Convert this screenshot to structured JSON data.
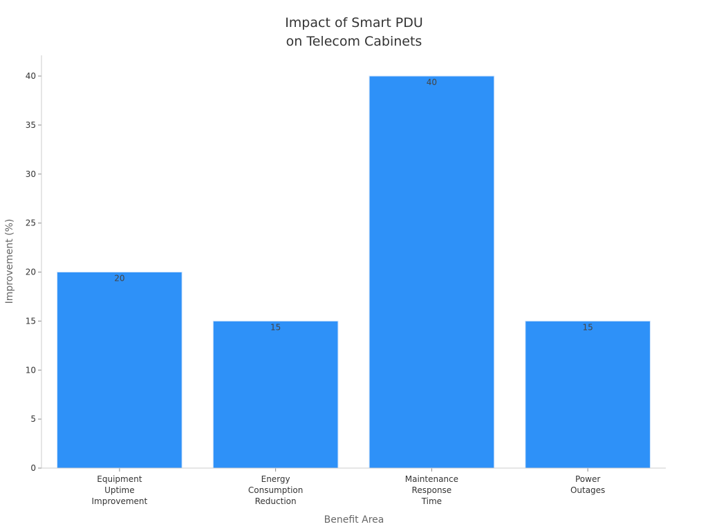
{
  "chart_data": {
    "type": "bar",
    "title": [
      "Impact of Smart PDU",
      "on Telecom Cabinets"
    ],
    "xlabel": "Benefit Area",
    "ylabel": "Improvement (%)",
    "categories": [
      [
        "Equipment",
        "Uptime",
        "Improvement"
      ],
      [
        "Energy",
        "Consumption",
        "Reduction"
      ],
      [
        "Maintenance",
        "Response",
        "Time"
      ],
      [
        "Power",
        "Outages"
      ]
    ],
    "values": [
      20,
      15,
      40,
      15
    ],
    "data_labels": [
      "20",
      "15",
      "40",
      "15"
    ],
    "yticks": [
      0,
      5,
      10,
      15,
      20,
      25,
      30,
      35,
      40
    ],
    "ylim": [
      0,
      42
    ],
    "grid": false,
    "bar_color": "#2e91f8"
  }
}
